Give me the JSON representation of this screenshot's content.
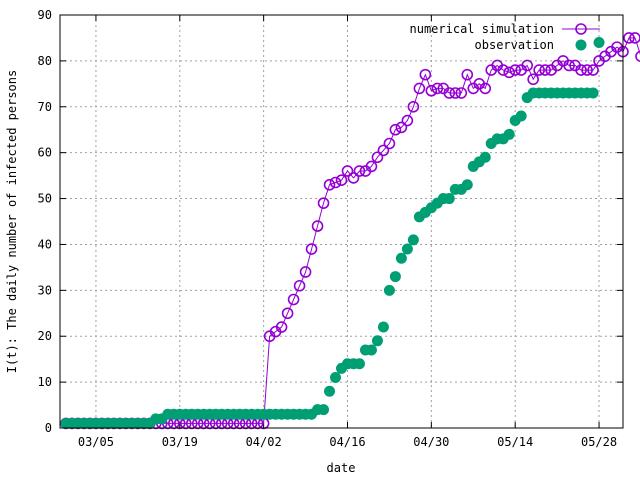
{
  "chart_data": {
    "type": "scatter",
    "xlabel": "date",
    "ylabel": "I(t): The daily number of infected persons",
    "ylim": [
      0,
      90
    ],
    "yticks": [
      0,
      10,
      20,
      30,
      40,
      50,
      60,
      70,
      80,
      90
    ],
    "x_day_range": [
      "2020-02-28",
      "2020-06-01"
    ],
    "xticks": [
      {
        "date": "2020-03-05",
        "label": "03/05"
      },
      {
        "date": "2020-03-19",
        "label": "03/19"
      },
      {
        "date": "2020-04-02",
        "label": "04/02"
      },
      {
        "date": "2020-04-16",
        "label": "04/16"
      },
      {
        "date": "2020-04-30",
        "label": "04/30"
      },
      {
        "date": "2020-05-14",
        "label": "05/14"
      },
      {
        "date": "2020-05-28",
        "label": "05/28"
      }
    ],
    "grid": true,
    "legend_position": "top-right",
    "series": [
      {
        "name": "numerical simulation",
        "color": "#9400d3",
        "marker": "open-circle",
        "start_date": "2020-02-29",
        "values": [
          1,
          1,
          1,
          1,
          1,
          1,
          1,
          1,
          1,
          1,
          1,
          1,
          1,
          1,
          1,
          1,
          1,
          1,
          1,
          1,
          1,
          1,
          1,
          1,
          1,
          1,
          1,
          1,
          1,
          1,
          1,
          1,
          1,
          1,
          20,
          21,
          22,
          25,
          28,
          31,
          34,
          39,
          44,
          49,
          53,
          53.5,
          54,
          56,
          54.5,
          56,
          56,
          57,
          59,
          60.5,
          62,
          65,
          65.5,
          67,
          70,
          74,
          77,
          73.5,
          74,
          74,
          73,
          73,
          73,
          77,
          74,
          75,
          74,
          78,
          79,
          78,
          77.5,
          78,
          78,
          79,
          76,
          78,
          78,
          78,
          79,
          80,
          79,
          79,
          78,
          78,
          78,
          80,
          81,
          82,
          83,
          82,
          85,
          85,
          81
        ]
      },
      {
        "name": "observation",
        "color": "#009e73",
        "marker": "filled-circle",
        "start_date": "2020-02-29",
        "values": [
          1,
          1,
          1,
          1,
          1,
          1,
          1,
          1,
          1,
          1,
          1,
          1,
          1,
          1,
          1,
          2,
          2,
          3,
          3,
          3,
          3,
          3,
          3,
          3,
          3,
          3,
          3,
          3,
          3,
          3,
          3,
          3,
          3,
          3,
          3,
          3,
          3,
          3,
          3,
          3,
          3,
          3,
          4,
          4,
          8,
          11,
          13,
          14,
          14,
          14,
          17,
          17,
          19,
          22,
          30,
          33,
          37,
          39,
          41,
          46,
          47,
          48,
          49,
          50,
          50,
          52,
          52,
          53,
          57,
          58,
          59,
          62,
          63,
          63,
          64,
          67,
          68,
          72,
          73,
          73,
          73,
          73,
          73,
          73,
          73,
          73,
          73,
          73,
          73,
          84
        ]
      }
    ]
  }
}
